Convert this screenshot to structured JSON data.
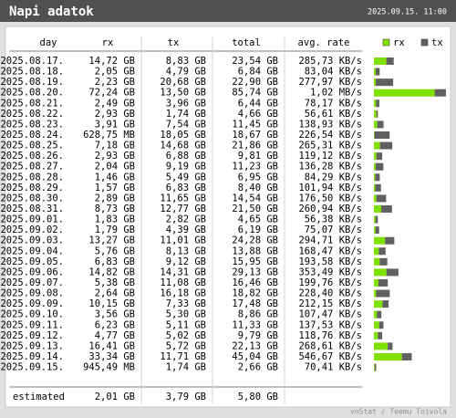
{
  "header": {
    "title": "Napi adatok",
    "date": "2025.09.15. 11:00"
  },
  "table": {
    "columns": [
      "day",
      "rx",
      "tx",
      "total",
      "avg. rate"
    ],
    "legend": [
      "rx",
      "tx"
    ],
    "rows": [
      [
        "2025.08.17.",
        "14,72 GB",
        "8,83 GB",
        "23,54 GB",
        "285,73 KB/s"
      ],
      [
        "2025.08.18.",
        "2,05 GB",
        "4,79 GB",
        "6,84 GB",
        "83,04 KB/s"
      ],
      [
        "2025.08.19.",
        "2,23 GB",
        "20,68 GB",
        "22,90 GB",
        "277,97 KB/s"
      ],
      [
        "2025.08.20.",
        "72,24 GB",
        "13,50 GB",
        "85,74 GB",
        "1,02 MB/s"
      ],
      [
        "2025.08.21.",
        "2,49 GB",
        "3,96 GB",
        "6,44 GB",
        "78,17 KB/s"
      ],
      [
        "2025.08.22.",
        "2,93 GB",
        "1,74 GB",
        "4,66 GB",
        "56,61 KB/s"
      ],
      [
        "2025.08.23.",
        "3,91 GB",
        "7,54 GB",
        "11,45 GB",
        "138,93 KB/s"
      ],
      [
        "2025.08.24.",
        "628,75 MB",
        "18,05 GB",
        "18,67 GB",
        "226,54 KB/s"
      ],
      [
        "2025.08.25.",
        "7,18 GB",
        "14,68 GB",
        "21,86 GB",
        "265,31 KB/s"
      ],
      [
        "2025.08.26.",
        "2,93 GB",
        "6,88 GB",
        "9,81 GB",
        "119,12 KB/s"
      ],
      [
        "2025.08.27.",
        "2,04 GB",
        "9,19 GB",
        "11,23 GB",
        "136,28 KB/s"
      ],
      [
        "2025.08.28.",
        "1,46 GB",
        "5,49 GB",
        "6,95 GB",
        "84,29 KB/s"
      ],
      [
        "2025.08.29.",
        "1,57 GB",
        "6,83 GB",
        "8,40 GB",
        "101,94 KB/s"
      ],
      [
        "2025.08.30.",
        "2,89 GB",
        "11,65 GB",
        "14,54 GB",
        "176,50 KB/s"
      ],
      [
        "2025.08.31.",
        "8,73 GB",
        "12,77 GB",
        "21,50 GB",
        "260,94 KB/s"
      ],
      [
        "2025.09.01.",
        "1,83 GB",
        "2,82 GB",
        "4,65 GB",
        "56,38 KB/s"
      ],
      [
        "2025.09.02.",
        "1,79 GB",
        "4,39 GB",
        "6,19 GB",
        "75,07 KB/s"
      ],
      [
        "2025.09.03.",
        "13,27 GB",
        "11,01 GB",
        "24,28 GB",
        "294,71 KB/s"
      ],
      [
        "2025.09.04.",
        "5,76 GB",
        "8,13 GB",
        "13,88 GB",
        "168,47 KB/s"
      ],
      [
        "2025.09.05.",
        "6,83 GB",
        "9,12 GB",
        "15,95 GB",
        "193,58 KB/s"
      ],
      [
        "2025.09.06.",
        "14,82 GB",
        "14,31 GB",
        "29,13 GB",
        "353,49 KB/s"
      ],
      [
        "2025.09.07.",
        "5,38 GB",
        "11,08 GB",
        "16,46 GB",
        "199,76 KB/s"
      ],
      [
        "2025.09.08.",
        "2,64 GB",
        "16,18 GB",
        "18,82 GB",
        "228,40 KB/s"
      ],
      [
        "2025.09.09.",
        "10,15 GB",
        "7,33 GB",
        "17,48 GB",
        "212,15 KB/s"
      ],
      [
        "2025.09.10.",
        "3,56 GB",
        "5,30 GB",
        "8,86 GB",
        "107,47 KB/s"
      ],
      [
        "2025.09.11.",
        "6,23 GB",
        "5,11 GB",
        "11,33 GB",
        "137,53 KB/s"
      ],
      [
        "2025.09.12.",
        "4,77 GB",
        "5,02 GB",
        "9,79 GB",
        "118,76 KB/s"
      ],
      [
        "2025.09.13.",
        "16,41 GB",
        "5,72 GB",
        "22,13 GB",
        "268,61 KB/s"
      ],
      [
        "2025.09.14.",
        "33,34 GB",
        "11,71 GB",
        "45,04 GB",
        "546,67 KB/s"
      ],
      [
        "2025.09.15.",
        "945,49 MB",
        "1,74 GB",
        "2,66 GB",
        "70,41 KB/s"
      ]
    ],
    "estimated": [
      "estimated",
      "2,01 GB",
      "3,79 GB",
      "5,80 GB"
    ]
  },
  "footer": "vnStat / Teemu Toivola"
}
